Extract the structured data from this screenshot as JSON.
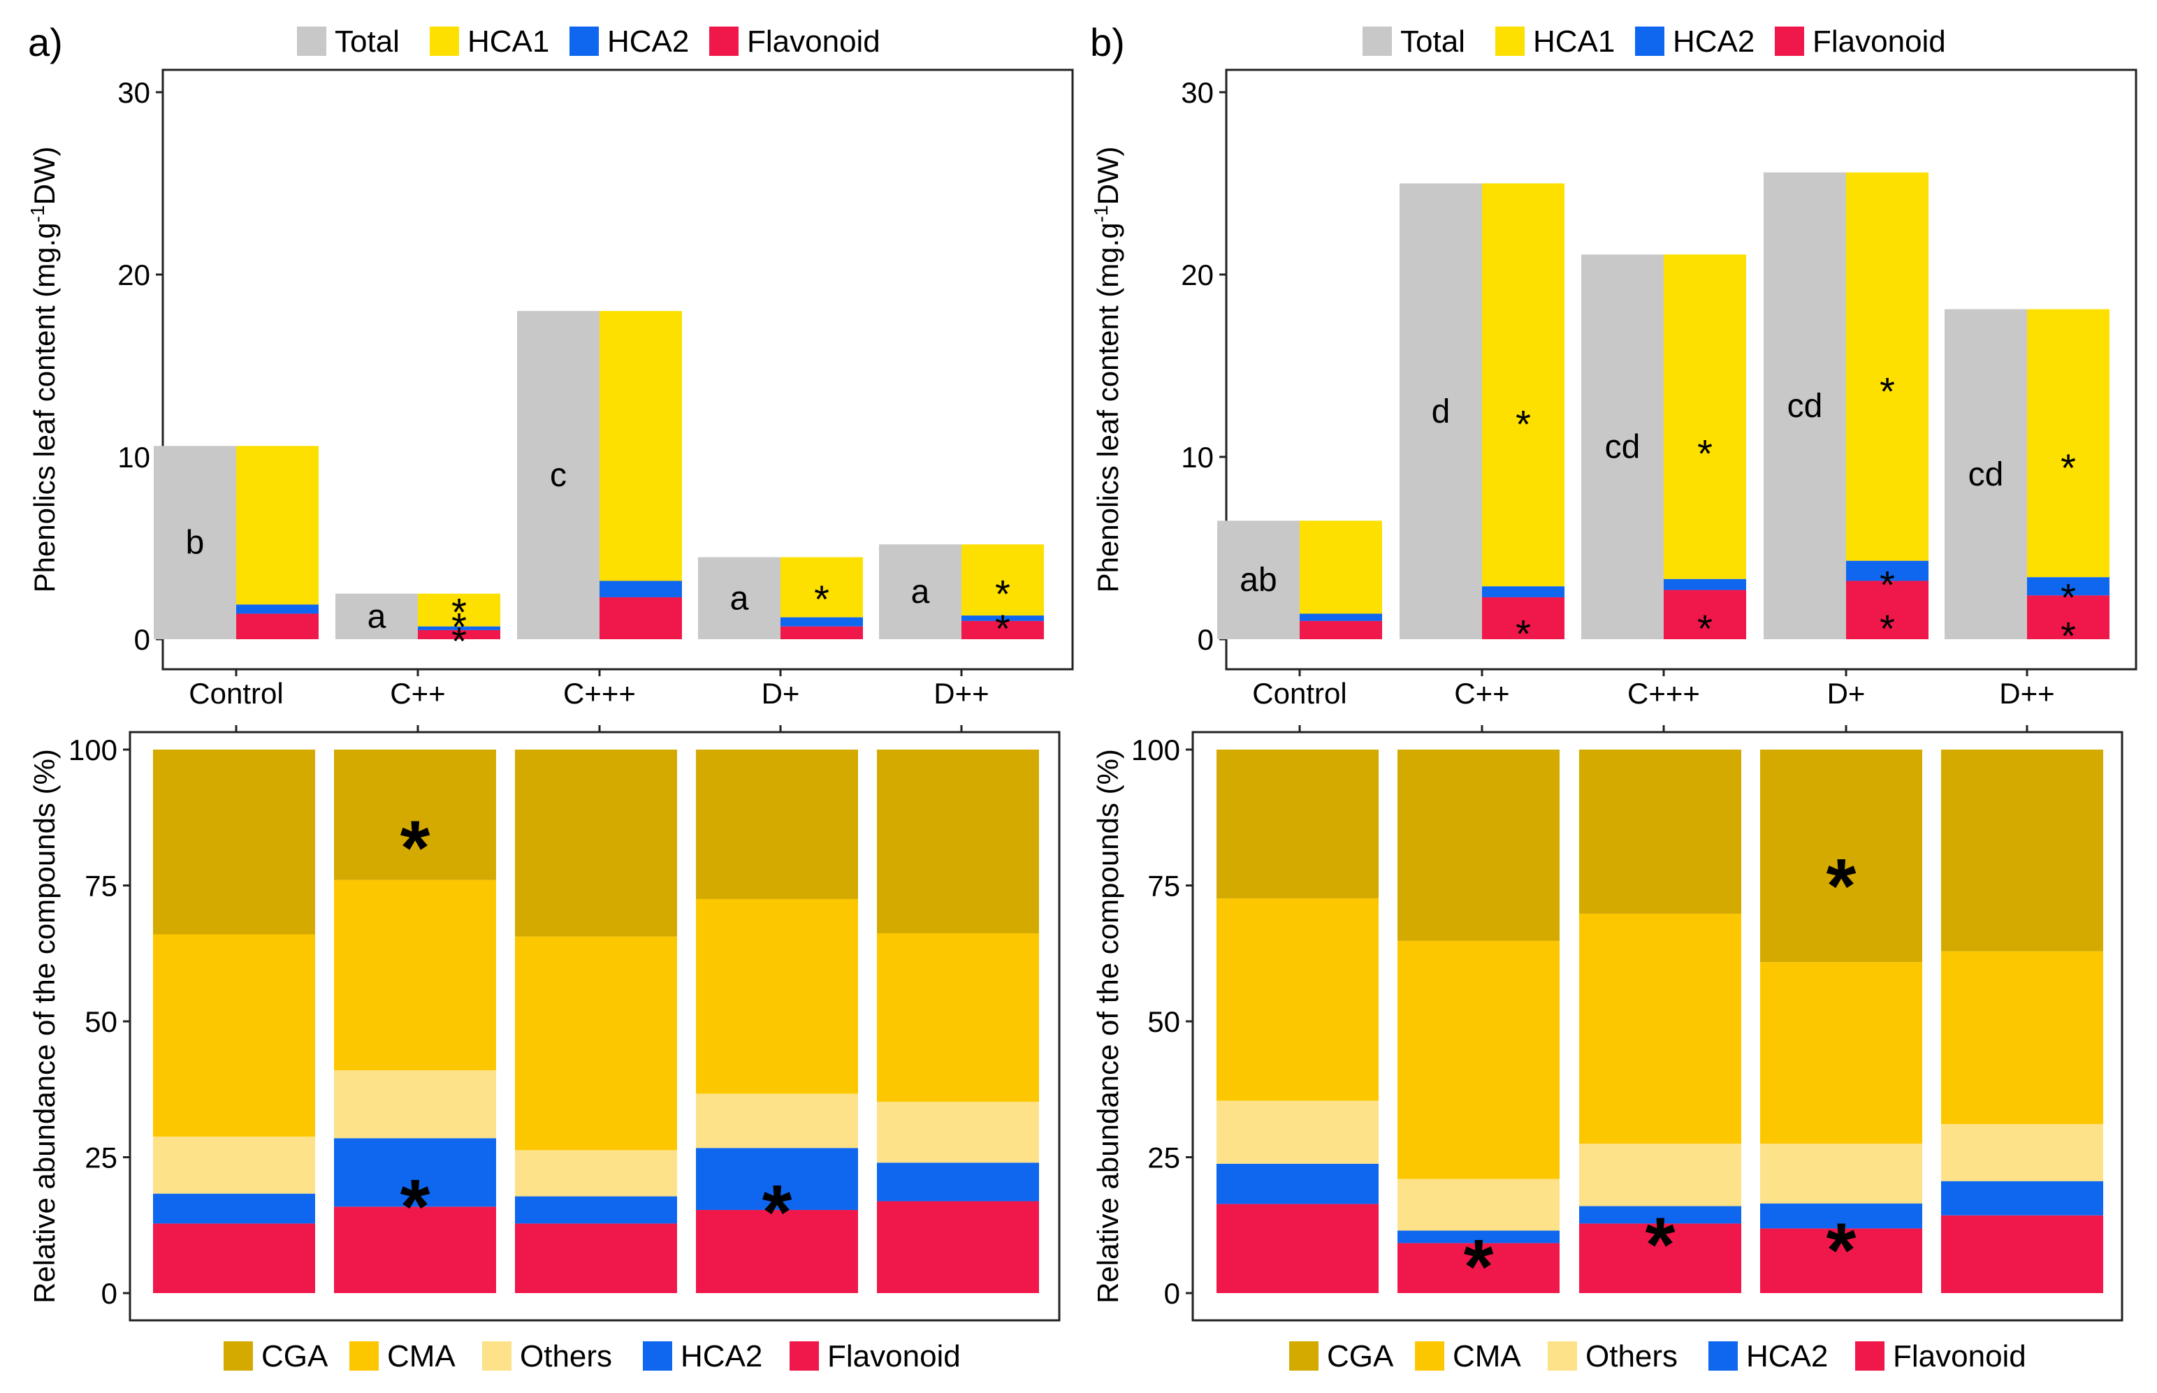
{
  "colors": {
    "Total": "#c8c8c8",
    "HCA1": "#fde000",
    "HCA2": "#0f67f0",
    "Flavonoid": "#f0184a",
    "CGA": "#d4aa00",
    "CMA": "#fdc700",
    "Others": "#fde289"
  },
  "legend_top": [
    "Total",
    "HCA1",
    "HCA2",
    "Flavonoid"
  ],
  "legend_bottom": [
    "CGA",
    "CMA",
    "Others",
    "HCA2",
    "Flavonoid"
  ],
  "chart_data": [
    {
      "panel": "a)",
      "type": "bar",
      "subtype": "grouped-stacked",
      "ylabel": "Phenolics leaf content (mg.g-1DW)",
      "ylabel_main": "Phenolics leaf content (mg.g",
      "ylabel_sup": "-1",
      "ylabel_end": "DW)",
      "ylim": [
        0,
        30
      ],
      "yticks": [
        "0",
        "10",
        "20",
        "30"
      ],
      "categories": [
        "Control",
        "C++",
        "C+++",
        "D+",
        "D++"
      ],
      "total": [
        10.6,
        2.5,
        18.0,
        4.5,
        5.2
      ],
      "total_letters": [
        "b",
        "a",
        "c",
        "a",
        "a"
      ],
      "flavonoid": [
        1.4,
        0.5,
        2.3,
        0.7,
        1.0
      ],
      "hca2": [
        0.5,
        0.2,
        0.9,
        0.5,
        0.3
      ],
      "hca1_top": [
        10.6,
        2.5,
        18.0,
        4.5,
        5.2
      ],
      "stars": [
        {
          "cat": 1,
          "value": 1.9,
          "text": "*"
        },
        {
          "cat": 1,
          "value": 1.1,
          "text": "*"
        },
        {
          "cat": 1,
          "value": 0.3,
          "text": "*"
        },
        {
          "cat": 3,
          "value": 2.6,
          "text": "*"
        },
        {
          "cat": 4,
          "value": 2.9,
          "text": "*"
        },
        {
          "cat": 4,
          "value": 1.0,
          "text": "*"
        }
      ]
    },
    {
      "panel": "b)",
      "type": "bar",
      "subtype": "grouped-stacked",
      "ylabel": "Phenolics leaf content (mg.g-1DW)",
      "ylabel_main": "Phenolics leaf content (mg.g",
      "ylabel_sup": "-1",
      "ylabel_end": "DW)",
      "ylim": [
        0,
        30
      ],
      "yticks": [
        "0",
        "10",
        "20",
        "30"
      ],
      "categories": [
        "Control",
        "C++",
        "C+++",
        "D+",
        "D++"
      ],
      "total": [
        6.5,
        25.0,
        21.1,
        25.6,
        18.1
      ],
      "total_letters": [
        "ab",
        "d",
        "cd",
        "cd",
        "cd"
      ],
      "flavonoid": [
        1.0,
        2.3,
        2.7,
        3.2,
        2.4
      ],
      "hca2": [
        0.4,
        0.6,
        0.6,
        1.1,
        1.0
      ],
      "hca1_top": [
        6.5,
        25.0,
        21.1,
        25.6,
        18.1
      ],
      "stars": [
        {
          "cat": 1,
          "value": 12.2,
          "text": "*"
        },
        {
          "cat": 1,
          "value": 0.7,
          "text": "*"
        },
        {
          "cat": 2,
          "value": 10.6,
          "text": "*"
        },
        {
          "cat": 2,
          "value": 1.0,
          "text": "*"
        },
        {
          "cat": 3,
          "value": 14.0,
          "text": "*"
        },
        {
          "cat": 3,
          "value": 3.4,
          "text": "*"
        },
        {
          "cat": 3,
          "value": 1.0,
          "text": "*"
        },
        {
          "cat": 4,
          "value": 9.8,
          "text": "*"
        },
        {
          "cat": 4,
          "value": 2.7,
          "text": "*"
        },
        {
          "cat": 4,
          "value": 0.6,
          "text": "*"
        }
      ]
    },
    {
      "panel": "a-bottom",
      "type": "bar",
      "subtype": "stacked-percent",
      "ylabel": "Relative abundance of the compounds (%)",
      "ylim": [
        0,
        100
      ],
      "yticks": [
        "0",
        "25",
        "50",
        "75",
        "100"
      ],
      "categories": [
        "Control",
        "C++",
        "C+++",
        "D+",
        "D++"
      ],
      "series": [
        {
          "name": "Flavonoid",
          "values": [
            12.8,
            15.9,
            12.8,
            15.3,
            16.9
          ]
        },
        {
          "name": "HCA2",
          "values": [
            5.5,
            12.6,
            5.0,
            11.4,
            7.1
          ]
        },
        {
          "name": "Others",
          "values": [
            10.5,
            12.5,
            8.5,
            10.0,
            11.2
          ]
        },
        {
          "name": "CMA",
          "values": [
            37.2,
            35.0,
            39.3,
            35.8,
            31.0
          ]
        },
        {
          "name": "CGA",
          "values": [
            34.0,
            24.0,
            34.4,
            27.5,
            33.8
          ]
        }
      ],
      "stars": [
        {
          "cat": 1,
          "value": 85,
          "text": "*"
        },
        {
          "cat": 1,
          "value": 19,
          "text": "*"
        },
        {
          "cat": 3,
          "value": 18,
          "text": "*"
        }
      ]
    },
    {
      "panel": "b-bottom",
      "type": "bar",
      "subtype": "stacked-percent",
      "ylabel": "Relative abundance of the compounds (%)",
      "ylim": [
        0,
        100
      ],
      "yticks": [
        "0",
        "25",
        "50",
        "75",
        "100"
      ],
      "categories": [
        "Control",
        "C++",
        "C+++",
        "D+",
        "D++"
      ],
      "series": [
        {
          "name": "Flavonoid",
          "values": [
            16.4,
            9.2,
            12.8,
            11.9,
            14.3
          ]
        },
        {
          "name": "HCA2",
          "values": [
            7.4,
            2.3,
            3.2,
            4.6,
            6.3
          ]
        },
        {
          "name": "Others",
          "values": [
            11.6,
            9.5,
            11.5,
            11.0,
            10.5
          ]
        },
        {
          "name": "CMA",
          "values": [
            37.2,
            43.8,
            42.3,
            33.4,
            31.8
          ]
        },
        {
          "name": "CGA",
          "values": [
            27.4,
            35.2,
            30.2,
            39.1,
            37.1
          ]
        }
      ],
      "stars": [
        {
          "cat": 3,
          "value": 78,
          "text": "*"
        },
        {
          "cat": 1,
          "value": 8,
          "text": "*"
        },
        {
          "cat": 2,
          "value": 12,
          "text": "*"
        },
        {
          "cat": 3,
          "value": 11,
          "text": "*"
        }
      ]
    }
  ]
}
